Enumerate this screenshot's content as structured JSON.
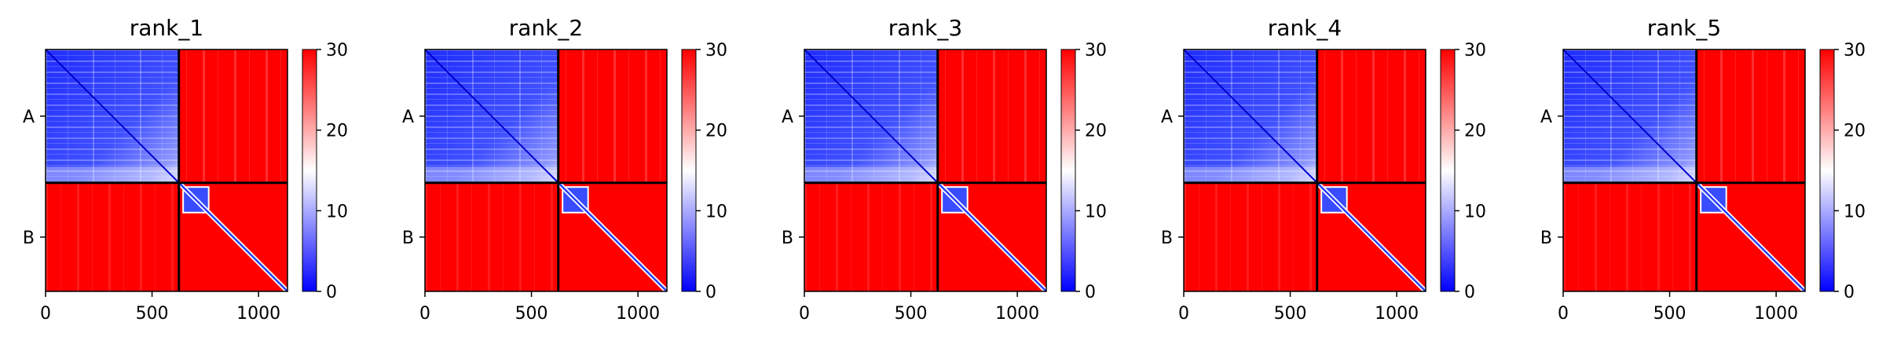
{
  "chart_data": {
    "type": "heatmap",
    "colormap": "bwr",
    "colorbar": {
      "min": 0,
      "max": 30,
      "ticks": [
        0,
        10,
        20,
        30
      ]
    },
    "x_axis": {
      "range": [
        0,
        1136
      ],
      "ticks": [
        0,
        500,
        1000
      ]
    },
    "y_axis": {
      "range": [
        1136,
        0
      ],
      "segment_labels": [
        "A",
        "B"
      ]
    },
    "chain_boundary": 626,
    "axis_length": 1136,
    "panels": [
      {
        "title": "rank_1"
      },
      {
        "title": "rank_2"
      },
      {
        "title": "rank_3"
      },
      {
        "title": "rank_4"
      },
      {
        "title": "rank_5"
      }
    ],
    "colors": {
      "low": "#0000ff",
      "mid": "#ffffff",
      "high": "#ff0000",
      "divider": "#000000"
    }
  }
}
